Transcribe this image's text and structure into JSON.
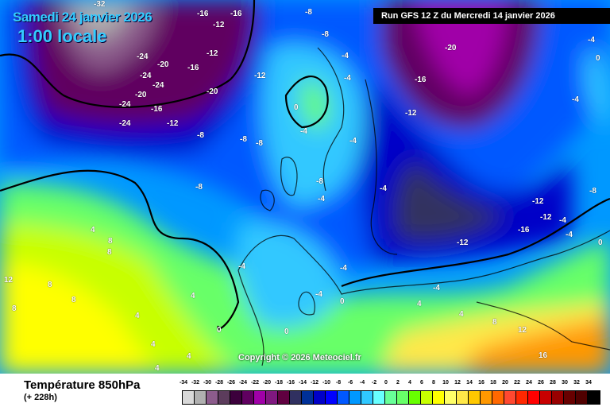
{
  "header": {
    "date": "Samedi 24 janvier 2026",
    "hour": "1:00 locale",
    "run": "Run GFS 12 Z du Mercredi 14 janvier 2026"
  },
  "copyright": "Copyright © 2026 Meteociel.fr",
  "footer": {
    "title": "Température 850hPa",
    "subtitle": "(+ 228h)"
  },
  "legend": {
    "labels": [
      "-34",
      "-32",
      "-30",
      "-28",
      "-26",
      "-24",
      "-22",
      "-20",
      "-18",
      "-16",
      "-14",
      "-12",
      "-10",
      "-8",
      "-6",
      "-4",
      "-2",
      "0",
      "2",
      "4",
      "6",
      "8",
      "10",
      "12",
      "14",
      "16",
      "18",
      "20",
      "22",
      "24",
      "26",
      "28",
      "30",
      "32",
      "34"
    ],
    "colors": [
      "#d8d8d8",
      "#b0b0b0",
      "#8c5c8c",
      "#5c3c5c",
      "#3c003c",
      "#600060",
      "#a000a8",
      "#801880",
      "#600040",
      "#303060",
      "#003098",
      "#0000c8",
      "#0000ff",
      "#0058ff",
      "#0098ff",
      "#30c8ff",
      "#68ffff",
      "#68ff98",
      "#68ff68",
      "#68ff00",
      "#c8ff00",
      "#ffff00",
      "#ffff68",
      "#ffe848",
      "#ffc800",
      "#ff9800",
      "#ff6800",
      "#ff4830",
      "#ff2800",
      "#ff0000",
      "#c80000",
      "#980000",
      "#680000",
      "#500000",
      "#000000"
    ]
  },
  "map_labels": [
    "-32",
    "-16",
    "-12",
    "-16",
    "-12",
    "-16",
    "-24",
    "-20",
    "-24",
    "-24",
    "-20",
    "-24",
    "-16",
    "-24",
    "-12",
    "-20",
    "-8",
    "-8",
    "-8",
    "-8",
    "-20",
    "-16",
    "-12",
    "-12",
    "-8",
    "-8",
    "-4",
    "0",
    "-4",
    "-4",
    "-4",
    "-8",
    "-4",
    "-4",
    "-12",
    "-16",
    "-12",
    "-4",
    "-4",
    "4",
    "8",
    "8",
    "12",
    "8",
    "8",
    "4",
    "4",
    "4",
    "4",
    "4",
    "0",
    "0",
    "-4",
    "0",
    "4",
    "8",
    "12",
    "16",
    "4",
    "8",
    "-4",
    "-4",
    "-4",
    "-12",
    "-8",
    "-4",
    "0",
    "-4",
    "0"
  ]
}
